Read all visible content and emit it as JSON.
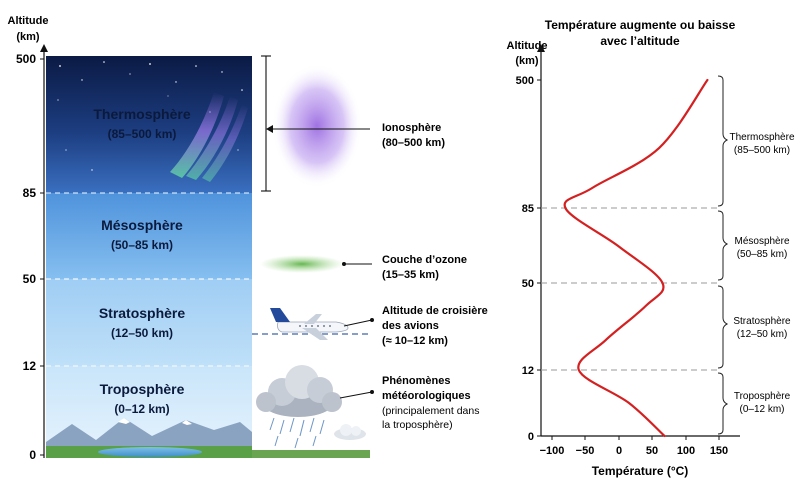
{
  "left_diagram": {
    "axis_title_line1": "Altitude",
    "axis_title_line2": "(km)",
    "ticks": [
      {
        "label": "500"
      },
      {
        "label": "85"
      },
      {
        "label": "50"
      },
      {
        "label": "12"
      },
      {
        "label": "0"
      }
    ],
    "layers": [
      {
        "name": "Thermosphère",
        "range": "(85–500 km)"
      },
      {
        "name": "Mésosphère",
        "range": "(50–85 km)"
      },
      {
        "name": "Stratosphère",
        "range": "(12–50 km)"
      },
      {
        "name": "Troposphère",
        "range": "(0–12 km)"
      }
    ],
    "annotations": {
      "ionosphere": {
        "line1": "Ionosphère",
        "line2": "(80–500 km)"
      },
      "ozone": {
        "line1": "Couche d’ozone",
        "line2": "(15–35 km)"
      },
      "cruise": {
        "line1": "Altitude de croisière",
        "line2": "des avions",
        "line3": "(≈ 10–12 km)"
      },
      "weather": {
        "line1": "Phénomènes",
        "line2": "météorologiques",
        "line3": "(principalement dans",
        "line4": "la troposphère)"
      }
    },
    "colors": {
      "thermo_top": "#0d1d4a",
      "thermo_bottom": "#2c5aa8",
      "meso": "#6fb0ea",
      "strato": "#a9d3f5",
      "tropo": "#d6ecfb",
      "ozone": "#7cc464",
      "aurora": "#9b6be0"
    }
  },
  "chart_data": {
    "type": "line",
    "title_line1": "Température augmente ou baisse",
    "title_line2": "avec l’altitude",
    "xlabel": "Température (°C)",
    "ylabel_line1": "Altitude",
    "ylabel_line2": "(km)",
    "x_ticks": [
      "−100",
      "−50",
      "0",
      "50",
      "100",
      "150"
    ],
    "y_ticks": [
      "0",
      "12",
      "50",
      "85",
      "500"
    ],
    "series": [
      {
        "color": "#d42020",
        "points": [
          {
            "t": 68,
            "alt": 0
          },
          {
            "t": 15,
            "alt": 6
          },
          {
            "t": -60,
            "alt": 12
          },
          {
            "t": -20,
            "alt": 25
          },
          {
            "t": 40,
            "alt": 40
          },
          {
            "t": 65,
            "alt": 50
          },
          {
            "t": 0,
            "alt": 67
          },
          {
            "t": -80,
            "alt": 85
          },
          {
            "t": -40,
            "alt": 150
          },
          {
            "t": 60,
            "alt": 280
          },
          {
            "t": 132,
            "alt": 500
          }
        ]
      }
    ],
    "layer_brackets": [
      {
        "name": "Thermosphère",
        "range": "(85–500 km)"
      },
      {
        "name": "Mésosphère",
        "range": "(50–85 km)"
      },
      {
        "name": "Stratosphère",
        "range": "(12–50 km)"
      },
      {
        "name": "Troposphère",
        "range": "(0–12 km)"
      }
    ],
    "gridlines": "dashed at layer boundaries"
  }
}
